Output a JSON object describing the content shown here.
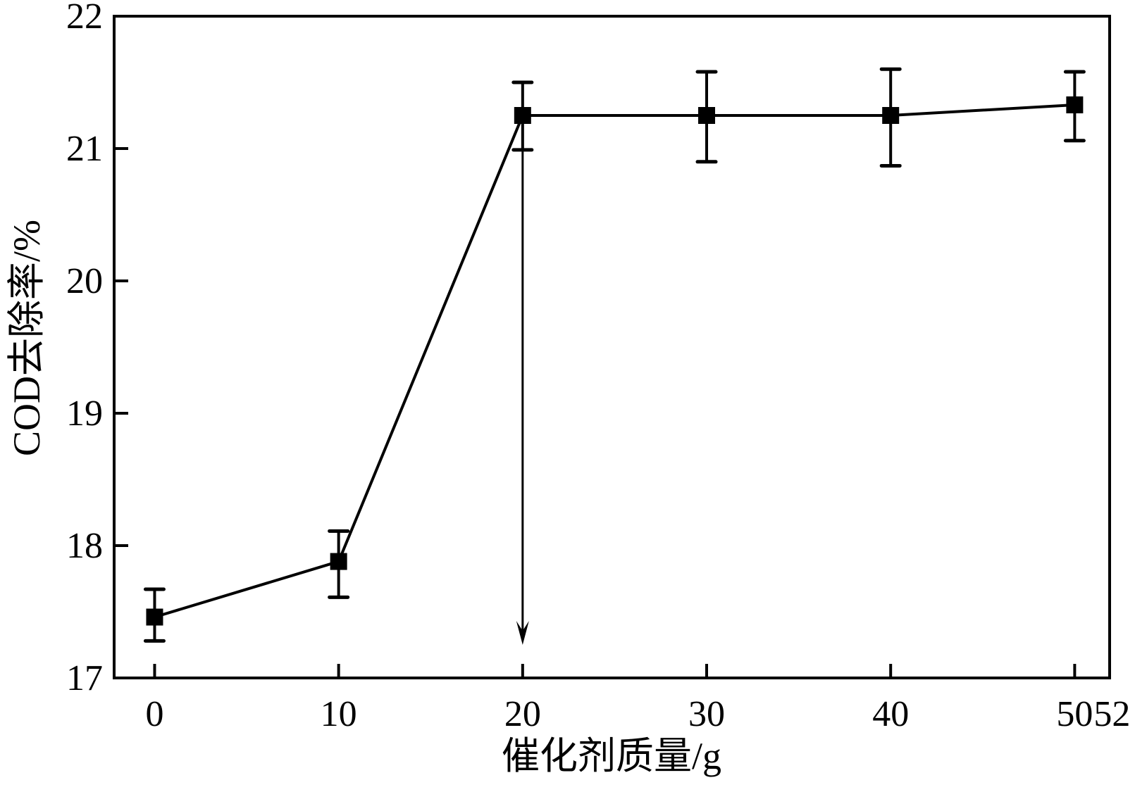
{
  "chart_data": {
    "type": "line",
    "title": "",
    "xlabel": "催化剂质量/g",
    "ylabel": "COD去除率/%",
    "xlim": [
      -2.2,
      51.9
    ],
    "ylim": [
      17,
      22
    ],
    "x_ticks": [
      0,
      10,
      20,
      30,
      40,
      50
    ],
    "x_tick_labels": [
      "0",
      "10",
      "20",
      "30",
      "40",
      "50"
    ],
    "x_extra_label": "52",
    "y_ticks": [
      17,
      18,
      19,
      20,
      21,
      22
    ],
    "y_tick_labels": [
      "17",
      "18",
      "19",
      "20",
      "21",
      "22"
    ],
    "grid": false,
    "marker": "square",
    "color": "#000000",
    "series": [
      {
        "x": [
          0,
          10,
          20,
          30,
          40,
          50
        ],
        "y": [
          17.46,
          17.88,
          21.25,
          21.25,
          21.25,
          21.33
        ],
        "err_upper": [
          17.67,
          18.11,
          21.5,
          21.58,
          21.6,
          21.58
        ],
        "err_lower": [
          17.28,
          17.61,
          20.99,
          20.9,
          20.87,
          21.06
        ]
      }
    ],
    "annotations": [
      {
        "type": "arrow",
        "from": [
          20,
          21.25
        ],
        "to": [
          20,
          17.25
        ]
      }
    ]
  }
}
